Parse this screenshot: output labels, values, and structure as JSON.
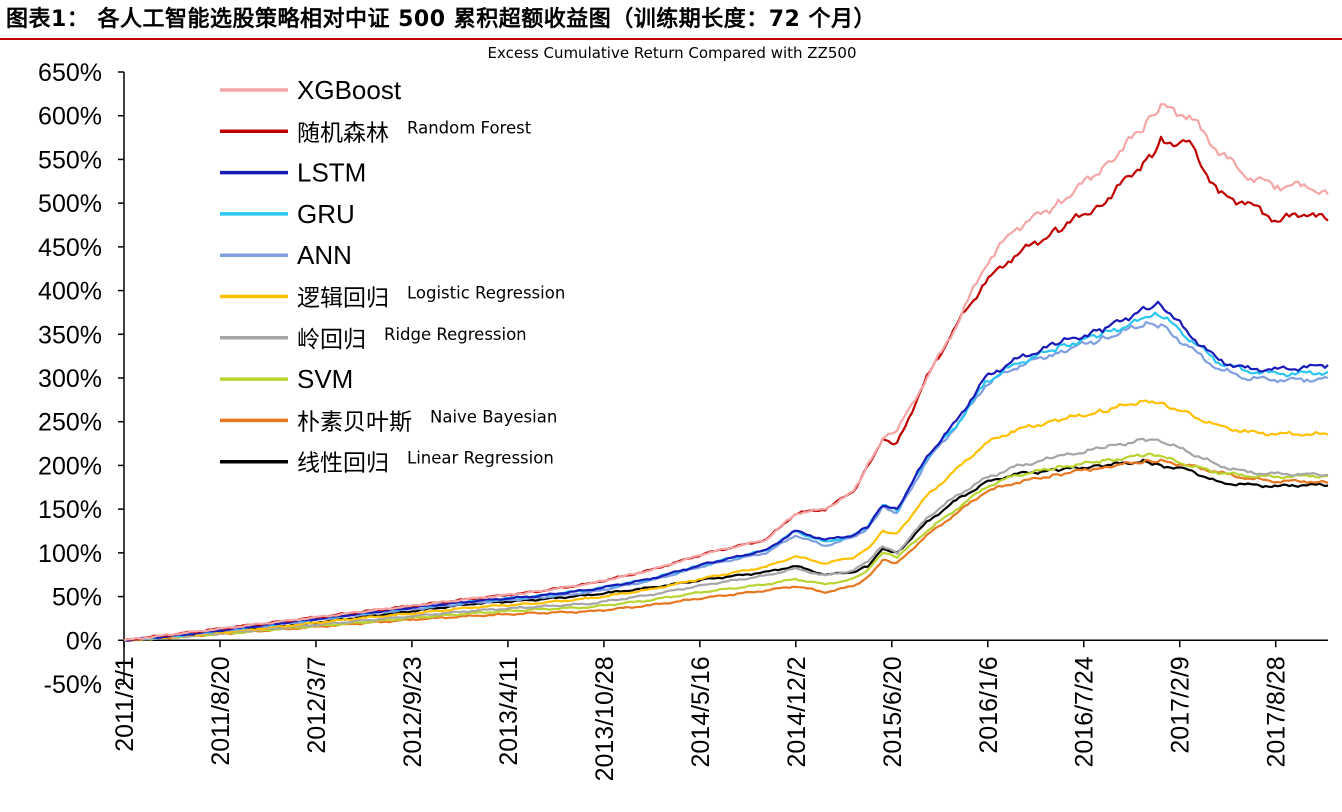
{
  "report_title": "图表1： 各人工智能选股策略相对中证 500 累积超额收益图（训练期长度：72 个月）",
  "colors": {
    "title_rule": "#c00000"
  },
  "chart_data": {
    "type": "line",
    "title": "Excess Cumulative Return Compared with ZZ500",
    "xlabel": "",
    "ylabel": "",
    "ylim": [
      -50,
      650
    ],
    "y_ticks": [
      "650%",
      "600%",
      "550%",
      "500%",
      "450%",
      "400%",
      "350%",
      "300%",
      "250%",
      "200%",
      "150%",
      "100%",
      "50%",
      "0%",
      "-50%"
    ],
    "y_tick_values": [
      650,
      600,
      550,
      500,
      450,
      400,
      350,
      300,
      250,
      200,
      150,
      100,
      50,
      0,
      -50
    ],
    "x_ticks": [
      "2011/2/1",
      "2011/8/20",
      "2012/3/7",
      "2012/9/23",
      "2013/4/11",
      "2013/10/28",
      "2014/5/16",
      "2014/12/2",
      "2015/6/20",
      "2016/1/6",
      "2016/7/24",
      "2017/2/9",
      "2017/8/28"
    ],
    "x_range": [
      "2011/2/1",
      "2017/12/15"
    ],
    "grid": false,
    "legend_position": "top-left",
    "x": [
      "2011/2/1",
      "2011/6/1",
      "2011/10/1",
      "2012/2/1",
      "2012/6/1",
      "2012/10/1",
      "2013/2/1",
      "2013/6/1",
      "2013/10/1",
      "2014/2/1",
      "2014/6/1",
      "2014/10/1",
      "2014/12/1",
      "2015/2/1",
      "2015/4/1",
      "2015/5/1",
      "2015/6/1",
      "2015/7/1",
      "2015/9/1",
      "2015/11/1",
      "2016/1/1",
      "2016/3/1",
      "2016/6/1",
      "2016/9/1",
      "2016/12/1",
      "2017/1/1",
      "2017/3/1",
      "2017/5/1",
      "2017/7/1",
      "2017/9/1",
      "2017/11/1",
      "2017/12/15"
    ],
    "series": [
      {
        "name": "XGBoost",
        "name_en": "",
        "color": "#f4a6a6",
        "width": 3.5,
        "values": [
          0,
          8,
          16,
          24,
          32,
          40,
          48,
          55,
          65,
          80,
          100,
          115,
          145,
          150,
          170,
          200,
          230,
          240,
          300,
          360,
          430,
          470,
          500,
          540,
          590,
          610,
          600,
          560,
          530,
          520,
          520,
          510
        ]
      },
      {
        "name": "随机森林",
        "name_en": "Random Forest",
        "color": "#c00000",
        "width": 3.5,
        "values": [
          0,
          8,
          16,
          24,
          32,
          40,
          48,
          55,
          65,
          80,
          100,
          115,
          145,
          150,
          170,
          200,
          230,
          225,
          300,
          360,
          410,
          440,
          470,
          500,
          550,
          570,
          570,
          510,
          500,
          480,
          490,
          480
        ]
      },
      {
        "name": "LSTM",
        "name_en": "",
        "color": "#1a1ab8",
        "width": 3.5,
        "values": [
          0,
          6,
          14,
          22,
          30,
          38,
          45,
          50,
          58,
          70,
          88,
          103,
          125,
          115,
          120,
          130,
          155,
          150,
          210,
          250,
          300,
          320,
          340,
          355,
          380,
          385,
          350,
          320,
          310,
          310,
          312,
          315
        ]
      },
      {
        "name": "GRU",
        "name_en": "",
        "color": "#29c6f0",
        "width": 3.5,
        "values": [
          0,
          6,
          14,
          22,
          30,
          38,
          45,
          50,
          58,
          70,
          88,
          103,
          125,
          112,
          120,
          130,
          155,
          148,
          210,
          245,
          295,
          315,
          335,
          350,
          368,
          372,
          345,
          318,
          308,
          305,
          305,
          307
        ]
      },
      {
        "name": "ANN",
        "name_en": "",
        "color": "#7f9fe0",
        "width": 3.5,
        "values": [
          0,
          6,
          13,
          21,
          29,
          36,
          43,
          48,
          55,
          68,
          86,
          100,
          120,
          108,
          118,
          128,
          152,
          145,
          205,
          245,
          292,
          312,
          330,
          345,
          362,
          360,
          335,
          310,
          300,
          298,
          298,
          300
        ]
      },
      {
        "name": "逻辑回归",
        "name_en": "Logistic Regression",
        "color": "#ffc000",
        "width": 3.5,
        "values": [
          0,
          5,
          11,
          18,
          25,
          31,
          38,
          42,
          48,
          58,
          72,
          84,
          96,
          88,
          95,
          105,
          125,
          122,
          165,
          195,
          225,
          240,
          252,
          262,
          275,
          272,
          258,
          245,
          238,
          236,
          236,
          235
        ]
      },
      {
        "name": "岭回归",
        "name_en": "Ridge Regression",
        "color": "#a6a6a6",
        "width": 3.5,
        "values": [
          0,
          4,
          10,
          16,
          22,
          28,
          34,
          38,
          42,
          52,
          64,
          74,
          82,
          74,
          80,
          90,
          108,
          100,
          140,
          165,
          185,
          198,
          210,
          220,
          230,
          228,
          215,
          200,
          192,
          190,
          190,
          189
        ]
      },
      {
        "name": "SVM",
        "name_en": "",
        "color": "#b8d430",
        "width": 3.5,
        "values": [
          0,
          4,
          9,
          15,
          20,
          26,
          31,
          35,
          38,
          46,
          56,
          64,
          70,
          64,
          70,
          80,
          100,
          95,
          125,
          150,
          175,
          188,
          198,
          205,
          212,
          210,
          200,
          192,
          188,
          187,
          188,
          188
        ]
      },
      {
        "name": "朴素贝叶斯",
        "name_en": "Naive Bayesian",
        "color": "#e87722",
        "width": 3.5,
        "values": [
          0,
          4,
          9,
          14,
          19,
          24,
          28,
          31,
          33,
          40,
          49,
          57,
          62,
          55,
          62,
          72,
          92,
          88,
          120,
          145,
          170,
          180,
          190,
          198,
          205,
          205,
          200,
          192,
          185,
          182,
          182,
          180
        ]
      },
      {
        "name": "线性回归",
        "name_en": "Linear Regression",
        "color": "#000000",
        "width": 3.5,
        "values": [
          0,
          5,
          12,
          18,
          26,
          34,
          42,
          46,
          52,
          60,
          70,
          78,
          85,
          75,
          78,
          85,
          105,
          100,
          135,
          160,
          180,
          190,
          195,
          200,
          205,
          200,
          195,
          180,
          178,
          176,
          178,
          177
        ]
      }
    ]
  }
}
